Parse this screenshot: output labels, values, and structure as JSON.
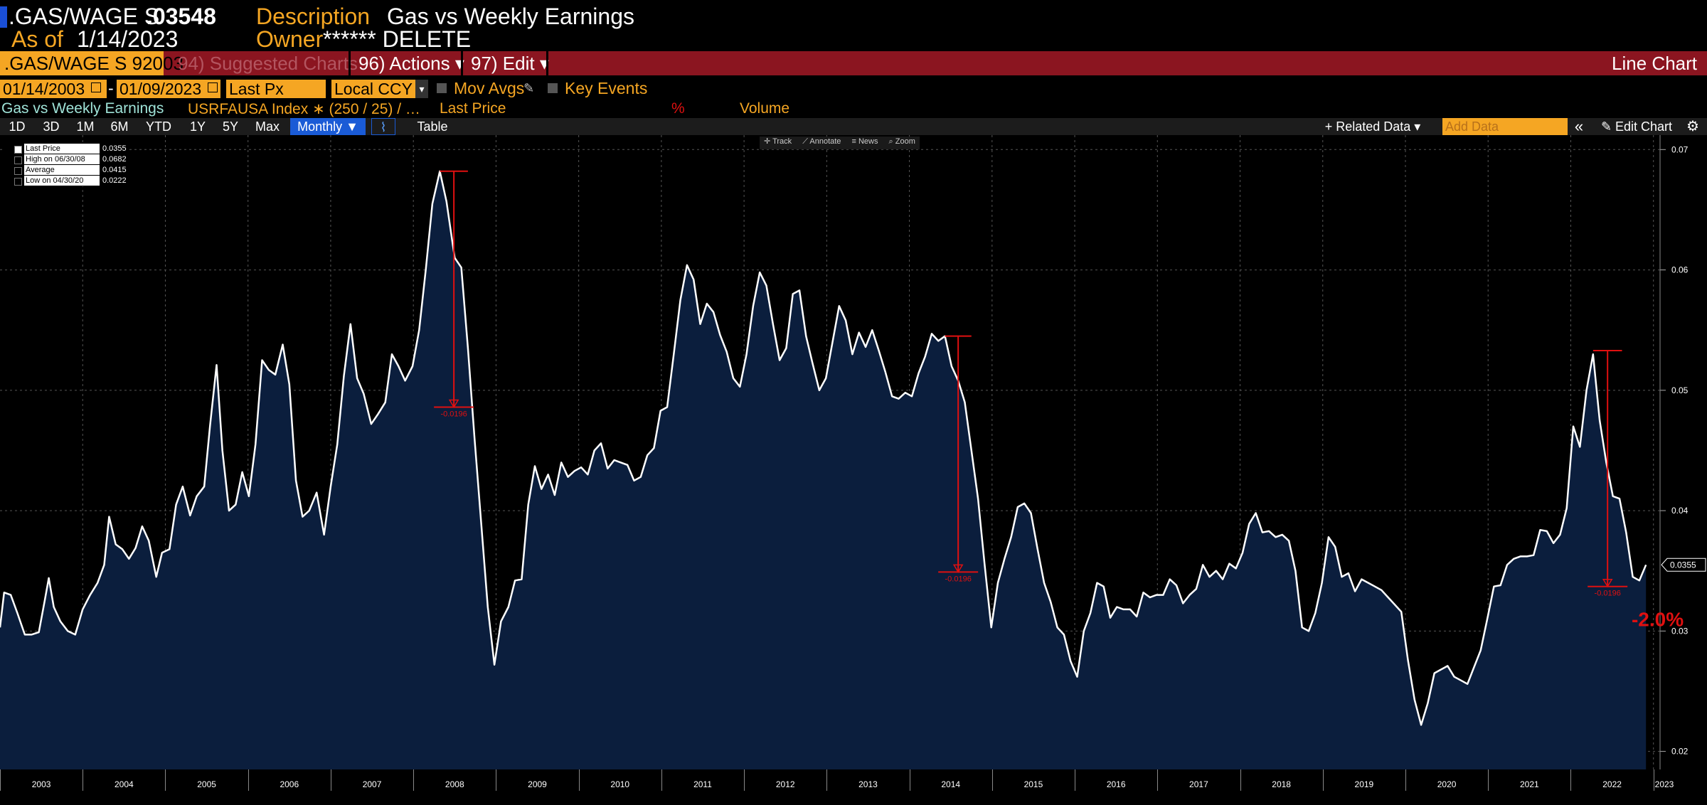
{
  "header": {
    "ticker": ".GAS/WAGE S",
    "price": ".03548",
    "description_label": "Description",
    "description": "Gas vs Weekly Earnings",
    "asof_label": "As of",
    "asof": "1/14/2023",
    "owner_label": "Owner",
    "owner": "****** DELETE"
  },
  "toolbar": {
    "security": ".GAS/WAGE S 92003",
    "suggested": "94) Suggested Charts",
    "actions": "96) Actions ▾",
    "edit": "97) Edit ▾",
    "chart_type": "Line Chart"
  },
  "range": {
    "start": "01/14/2003",
    "dash": "-",
    "end": "01/09/2023",
    "field": "Last Px",
    "currency": "Local CCY",
    "mov_avgs": "Mov Avgs",
    "key_events": "Key Events"
  },
  "legend_row": {
    "title": "Gas vs Weekly Earnings",
    "index": "USRFAUSA Index ∗ (250 / 25) / …",
    "last_price": "Last Price",
    "pct": "%",
    "volume": "Volume"
  },
  "periods": [
    "1D",
    "3D",
    "1M",
    "6M",
    "YTD",
    "1Y",
    "5Y",
    "Max"
  ],
  "frequency": "Monthly ▼",
  "table_label": "Table",
  "related_data": "+ Related Data ▾",
  "add_data": "Add Data",
  "collapse": "«",
  "edit_chart": "✎ Edit Chart",
  "settings_icon": "gear-icon",
  "tools": [
    "✛ Track",
    "⟋ Annotate",
    "≡ News",
    "⌕ Zoom"
  ],
  "stats": [
    {
      "label": "Last Price",
      "value": "0.0355"
    },
    {
      "label": "High on 06/30/08",
      "value": "0.0682"
    },
    {
      "label": "Average",
      "value": "0.0415"
    },
    {
      "label": "Low on 04/30/20",
      "value": "0.0222"
    }
  ],
  "last_tag": "0.0355",
  "big_change": "-2.0%",
  "colors": {
    "line": "#ffffff",
    "fill": "#0b1e3d",
    "accent": "#f5a623",
    "bar": "#8b1520",
    "marker": "#e01010"
  },
  "chart_data": {
    "type": "area",
    "title": "",
    "xlabel": "",
    "ylabel": "",
    "ylim": [
      0.0185,
      0.0712
    ],
    "yticks": [
      0.02,
      0.03,
      0.04,
      0.05,
      0.06,
      0.07
    ],
    "ytick_labels": [
      "0.02",
      "0.03",
      "0.04",
      "0.05",
      "0.06",
      "0.07"
    ],
    "xlim": [
      2003.0,
      2023.08
    ],
    "xtick_labels": [
      "2003",
      "2004",
      "2005",
      "2006",
      "2007",
      "2008",
      "2009",
      "2010",
      "2011",
      "2012",
      "2013",
      "2014",
      "2015",
      "2016",
      "2017",
      "2018",
      "2019",
      "2020",
      "2021",
      "2022",
      "2023"
    ],
    "grid": true,
    "series": [
      {
        "name": "Last Price",
        "points": [
          [
            2003.0,
            0.0303
          ],
          [
            2003.05,
            0.0332
          ],
          [
            2003.13,
            0.033
          ],
          [
            2003.21,
            0.0315
          ],
          [
            2003.3,
            0.0297
          ],
          [
            2003.38,
            0.0297
          ],
          [
            2003.47,
            0.0299
          ],
          [
            2003.54,
            0.0325
          ],
          [
            2003.59,
            0.0344
          ],
          [
            2003.65,
            0.032
          ],
          [
            2003.73,
            0.0308
          ],
          [
            2003.82,
            0.03
          ],
          [
            2003.91,
            0.0297
          ],
          [
            2004.0,
            0.0318
          ],
          [
            2004.09,
            0.033
          ],
          [
            2004.18,
            0.034
          ],
          [
            2004.26,
            0.0355
          ],
          [
            2004.32,
            0.0395
          ],
          [
            2004.4,
            0.0372
          ],
          [
            2004.48,
            0.0368
          ],
          [
            2004.56,
            0.036
          ],
          [
            2004.64,
            0.0369
          ],
          [
            2004.72,
            0.0387
          ],
          [
            2004.8,
            0.0375
          ],
          [
            2004.89,
            0.0345
          ],
          [
            2004.96,
            0.0365
          ],
          [
            2005.05,
            0.0368
          ],
          [
            2005.13,
            0.0405
          ],
          [
            2005.21,
            0.042
          ],
          [
            2005.3,
            0.0396
          ],
          [
            2005.38,
            0.0412
          ],
          [
            2005.47,
            0.042
          ],
          [
            2005.54,
            0.047
          ],
          [
            2005.62,
            0.0521
          ],
          [
            2005.69,
            0.045
          ],
          [
            2005.77,
            0.04
          ],
          [
            2005.85,
            0.0405
          ],
          [
            2005.93,
            0.0432
          ],
          [
            2006.01,
            0.0412
          ],
          [
            2006.09,
            0.0455
          ],
          [
            2006.17,
            0.0525
          ],
          [
            2006.25,
            0.0517
          ],
          [
            2006.33,
            0.0513
          ],
          [
            2006.42,
            0.0538
          ],
          [
            2006.5,
            0.0505
          ],
          [
            2006.58,
            0.0425
          ],
          [
            2006.66,
            0.0395
          ],
          [
            2006.74,
            0.04
          ],
          [
            2006.83,
            0.0415
          ],
          [
            2006.92,
            0.038
          ],
          [
            2007.0,
            0.042
          ],
          [
            2007.08,
            0.0455
          ],
          [
            2007.16,
            0.0512
          ],
          [
            2007.24,
            0.0555
          ],
          [
            2007.32,
            0.051
          ],
          [
            2007.4,
            0.0497
          ],
          [
            2007.49,
            0.0472
          ],
          [
            2007.57,
            0.048
          ],
          [
            2007.66,
            0.049
          ],
          [
            2007.74,
            0.053
          ],
          [
            2007.82,
            0.052
          ],
          [
            2007.9,
            0.0508
          ],
          [
            2007.99,
            0.052
          ],
          [
            2008.07,
            0.055
          ],
          [
            2008.15,
            0.06
          ],
          [
            2008.23,
            0.0655
          ],
          [
            2008.32,
            0.0682
          ],
          [
            2008.4,
            0.0657
          ],
          [
            2008.5,
            0.061
          ],
          [
            2008.58,
            0.0602
          ],
          [
            2008.66,
            0.0535
          ],
          [
            2008.74,
            0.046
          ],
          [
            2008.82,
            0.039
          ],
          [
            2008.9,
            0.032
          ],
          [
            2008.98,
            0.0272
          ],
          [
            2009.06,
            0.0308
          ],
          [
            2009.15,
            0.032
          ],
          [
            2009.23,
            0.0342
          ],
          [
            2009.31,
            0.0343
          ],
          [
            2009.39,
            0.0405
          ],
          [
            2009.47,
            0.0437
          ],
          [
            2009.55,
            0.0418
          ],
          [
            2009.63,
            0.043
          ],
          [
            2009.71,
            0.0413
          ],
          [
            2009.79,
            0.044
          ],
          [
            2009.87,
            0.0428
          ],
          [
            2009.95,
            0.0433
          ],
          [
            2010.03,
            0.0436
          ],
          [
            2010.11,
            0.043
          ],
          [
            2010.19,
            0.045
          ],
          [
            2010.27,
            0.0456
          ],
          [
            2010.35,
            0.0435
          ],
          [
            2010.43,
            0.0442
          ],
          [
            2010.51,
            0.044
          ],
          [
            2010.59,
            0.0438
          ],
          [
            2010.67,
            0.0425
          ],
          [
            2010.75,
            0.0428
          ],
          [
            2010.83,
            0.0446
          ],
          [
            2010.91,
            0.0452
          ],
          [
            2010.99,
            0.0483
          ],
          [
            2011.07,
            0.0486
          ],
          [
            2011.15,
            0.053
          ],
          [
            2011.23,
            0.0575
          ],
          [
            2011.31,
            0.0604
          ],
          [
            2011.39,
            0.0592
          ],
          [
            2011.47,
            0.0555
          ],
          [
            2011.55,
            0.0572
          ],
          [
            2011.63,
            0.0565
          ],
          [
            2011.71,
            0.0546
          ],
          [
            2011.79,
            0.0532
          ],
          [
            2011.87,
            0.051
          ],
          [
            2011.95,
            0.0503
          ],
          [
            2012.03,
            0.053
          ],
          [
            2012.11,
            0.057
          ],
          [
            2012.19,
            0.0598
          ],
          [
            2012.27,
            0.0587
          ],
          [
            2012.35,
            0.0555
          ],
          [
            2012.43,
            0.0525
          ],
          [
            2012.51,
            0.0535
          ],
          [
            2012.59,
            0.058
          ],
          [
            2012.67,
            0.0583
          ],
          [
            2012.75,
            0.0545
          ],
          [
            2012.83,
            0.0522
          ],
          [
            2012.91,
            0.05
          ],
          [
            2012.99,
            0.051
          ],
          [
            2013.07,
            0.054
          ],
          [
            2013.15,
            0.057
          ],
          [
            2013.23,
            0.0558
          ],
          [
            2013.31,
            0.053
          ],
          [
            2013.39,
            0.0548
          ],
          [
            2013.47,
            0.0536
          ],
          [
            2013.55,
            0.055
          ],
          [
            2013.63,
            0.0533
          ],
          [
            2013.71,
            0.0515
          ],
          [
            2013.79,
            0.0495
          ],
          [
            2013.87,
            0.0493
          ],
          [
            2013.95,
            0.0498
          ],
          [
            2014.03,
            0.0495
          ],
          [
            2014.11,
            0.0514
          ],
          [
            2014.19,
            0.0528
          ],
          [
            2014.27,
            0.0547
          ],
          [
            2014.35,
            0.0541
          ],
          [
            2014.43,
            0.0545
          ],
          [
            2014.51,
            0.052
          ],
          [
            2014.59,
            0.0508
          ],
          [
            2014.67,
            0.049
          ],
          [
            2014.75,
            0.045
          ],
          [
            2014.83,
            0.041
          ],
          [
            2014.91,
            0.0355
          ],
          [
            2014.99,
            0.0303
          ],
          [
            2015.07,
            0.034
          ],
          [
            2015.15,
            0.036
          ],
          [
            2015.23,
            0.0378
          ],
          [
            2015.31,
            0.0403
          ],
          [
            2015.39,
            0.0406
          ],
          [
            2015.47,
            0.0398
          ],
          [
            2015.55,
            0.0368
          ],
          [
            2015.63,
            0.034
          ],
          [
            2015.71,
            0.0324
          ],
          [
            2015.79,
            0.0303
          ],
          [
            2015.87,
            0.0297
          ],
          [
            2015.95,
            0.0275
          ],
          [
            2016.03,
            0.0262
          ],
          [
            2016.11,
            0.03
          ],
          [
            2016.19,
            0.0315
          ],
          [
            2016.27,
            0.034
          ],
          [
            2016.35,
            0.0337
          ],
          [
            2016.43,
            0.0311
          ],
          [
            2016.51,
            0.032
          ],
          [
            2016.59,
            0.0318
          ],
          [
            2016.67,
            0.0318
          ],
          [
            2016.75,
            0.0312
          ],
          [
            2016.83,
            0.0332
          ],
          [
            2016.91,
            0.0328
          ],
          [
            2016.99,
            0.033
          ],
          [
            2017.07,
            0.033
          ],
          [
            2017.15,
            0.0343
          ],
          [
            2017.23,
            0.0338
          ],
          [
            2017.31,
            0.0323
          ],
          [
            2017.39,
            0.033
          ],
          [
            2017.47,
            0.0335
          ],
          [
            2017.55,
            0.0355
          ],
          [
            2017.63,
            0.0345
          ],
          [
            2017.71,
            0.035
          ],
          [
            2017.79,
            0.0343
          ],
          [
            2017.87,
            0.0356
          ],
          [
            2017.95,
            0.0352
          ],
          [
            2018.03,
            0.0365
          ],
          [
            2018.11,
            0.0389
          ],
          [
            2018.19,
            0.0398
          ],
          [
            2018.27,
            0.0382
          ],
          [
            2018.35,
            0.0383
          ],
          [
            2018.43,
            0.0378
          ],
          [
            2018.51,
            0.038
          ],
          [
            2018.59,
            0.0375
          ],
          [
            2018.67,
            0.035
          ],
          [
            2018.75,
            0.0303
          ],
          [
            2018.83,
            0.03
          ],
          [
            2018.91,
            0.0315
          ],
          [
            2018.99,
            0.034
          ],
          [
            2019.07,
            0.0378
          ],
          [
            2019.15,
            0.037
          ],
          [
            2019.23,
            0.0345
          ],
          [
            2019.31,
            0.0348
          ],
          [
            2019.39,
            0.0333
          ],
          [
            2019.47,
            0.0343
          ],
          [
            2019.55,
            0.034
          ],
          [
            2019.63,
            0.0337
          ],
          [
            2019.71,
            0.0334
          ],
          [
            2019.79,
            0.0328
          ],
          [
            2019.87,
            0.0322
          ],
          [
            2019.95,
            0.0316
          ],
          [
            2020.03,
            0.0276
          ],
          [
            2020.11,
            0.0243
          ],
          [
            2020.19,
            0.0222
          ],
          [
            2020.27,
            0.024
          ],
          [
            2020.35,
            0.0265
          ],
          [
            2020.43,
            0.0268
          ],
          [
            2020.51,
            0.0271
          ],
          [
            2020.59,
            0.0262
          ],
          [
            2020.67,
            0.0259
          ],
          [
            2020.75,
            0.0256
          ],
          [
            2020.83,
            0.027
          ],
          [
            2020.91,
            0.0284
          ],
          [
            2020.99,
            0.031
          ],
          [
            2021.07,
            0.0337
          ],
          [
            2021.15,
            0.0338
          ],
          [
            2021.23,
            0.0355
          ],
          [
            2021.31,
            0.036
          ],
          [
            2021.39,
            0.0362
          ],
          [
            2021.47,
            0.0362
          ],
          [
            2021.55,
            0.0363
          ],
          [
            2021.63,
            0.0384
          ],
          [
            2021.71,
            0.0383
          ],
          [
            2021.79,
            0.0373
          ],
          [
            2021.87,
            0.038
          ],
          [
            2021.95,
            0.0402
          ],
          [
            2022.03,
            0.047
          ],
          [
            2022.11,
            0.0453
          ],
          [
            2022.19,
            0.05
          ],
          [
            2022.27,
            0.053
          ],
          [
            2022.35,
            0.0475
          ],
          [
            2022.43,
            0.044
          ],
          [
            2022.51,
            0.0412
          ],
          [
            2022.59,
            0.041
          ],
          [
            2022.67,
            0.0382
          ],
          [
            2022.75,
            0.0345
          ],
          [
            2022.83,
            0.0342
          ],
          [
            2022.91,
            0.0355
          ]
        ]
      }
    ],
    "drawdowns": [
      {
        "from_x": 2008.32,
        "to_x": 2008.66,
        "top": 0.0682,
        "bottom": 0.0486,
        "label": "-0.0196"
      },
      {
        "from_x": 2014.43,
        "to_x": 2014.75,
        "top": 0.0545,
        "bottom": 0.0349,
        "label": "-0.0196"
      },
      {
        "from_x": 2022.27,
        "to_x": 2022.62,
        "top": 0.0533,
        "bottom": 0.0337,
        "label": "-0.0196"
      }
    ]
  }
}
